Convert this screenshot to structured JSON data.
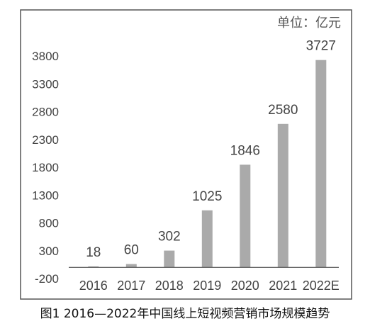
{
  "unit_label": "单位：亿元",
  "caption": "图1  2016—2022年中国线上短视频营销市场规模趋势",
  "chart_data": {
    "type": "bar",
    "categories": [
      "2016",
      "2017",
      "2018",
      "2019",
      "2020",
      "2021",
      "2022E"
    ],
    "values": [
      18,
      60,
      302,
      1025,
      1846,
      2580,
      3727
    ],
    "data_labels": [
      "18",
      "60",
      "302",
      "1025",
      "1846",
      "2580",
      "3727"
    ],
    "ylim": [
      -200,
      3800
    ],
    "yticks": [
      -200,
      300,
      800,
      1300,
      1800,
      2300,
      2800,
      3300,
      3800
    ],
    "ytick_labels": [
      "-200",
      "300",
      "800",
      "1300",
      "1800",
      "2300",
      "2800",
      "3300",
      "3800"
    ],
    "title": "",
    "xlabel": "",
    "ylabel": "",
    "grid": false,
    "colors": {
      "bar": "#aaaaaa",
      "frame": "#555555",
      "text": "#444444"
    }
  }
}
